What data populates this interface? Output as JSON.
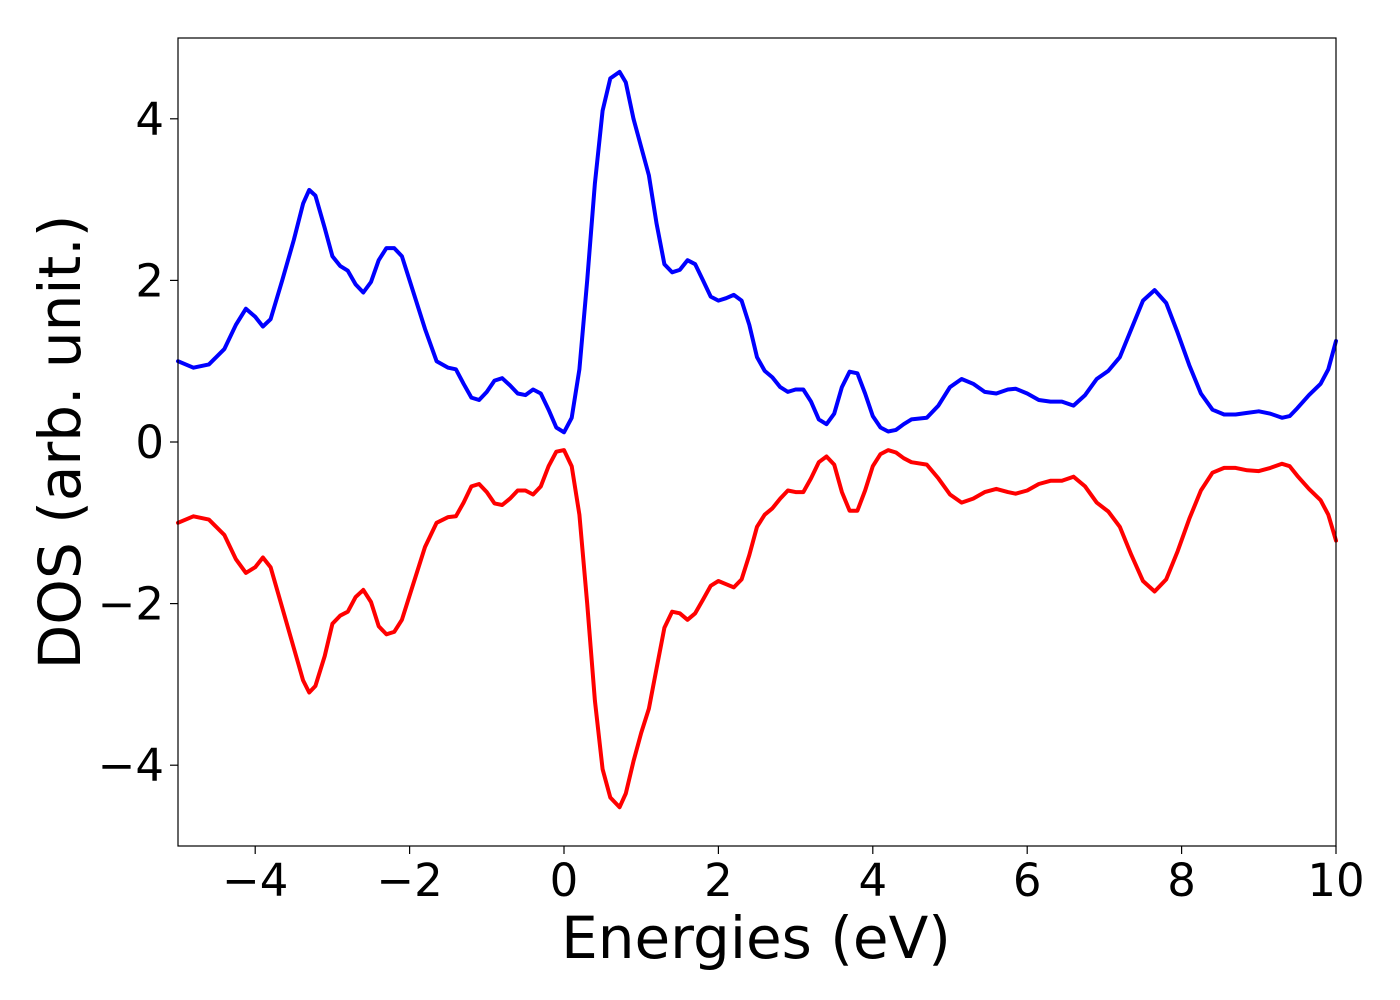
{
  "chart_data": {
    "type": "line",
    "title": "",
    "xlabel": "Energies (eV)",
    "ylabel": "DOS (arb. unit.)",
    "xlim": [
      -5,
      10
    ],
    "ylim": [
      -5,
      5
    ],
    "grid": false,
    "x_ticks": [
      -4,
      -2,
      0,
      2,
      4,
      6,
      8,
      10
    ],
    "x_tick_labels": [
      "−4",
      "−2",
      "0",
      "2",
      "4",
      "6",
      "8",
      "10"
    ],
    "y_ticks": [
      -4,
      -2,
      0,
      2,
      4
    ],
    "y_tick_labels": [
      "−4",
      "−2",
      "0",
      "2",
      "4"
    ],
    "series": [
      {
        "color": "#0000ff",
        "points": [
          [
            -5.0,
            1.0
          ],
          [
            -4.8,
            0.92
          ],
          [
            -4.6,
            0.96
          ],
          [
            -4.4,
            1.15
          ],
          [
            -4.25,
            1.45
          ],
          [
            -4.12,
            1.65
          ],
          [
            -4.0,
            1.55
          ],
          [
            -3.9,
            1.43
          ],
          [
            -3.8,
            1.52
          ],
          [
            -3.65,
            2.0
          ],
          [
            -3.5,
            2.5
          ],
          [
            -3.38,
            2.95
          ],
          [
            -3.3,
            3.12
          ],
          [
            -3.22,
            3.05
          ],
          [
            -3.1,
            2.65
          ],
          [
            -3.0,
            2.3
          ],
          [
            -2.9,
            2.18
          ],
          [
            -2.8,
            2.12
          ],
          [
            -2.7,
            1.95
          ],
          [
            -2.6,
            1.85
          ],
          [
            -2.5,
            1.98
          ],
          [
            -2.4,
            2.25
          ],
          [
            -2.3,
            2.4
          ],
          [
            -2.2,
            2.4
          ],
          [
            -2.1,
            2.3
          ],
          [
            -2.0,
            2.0
          ],
          [
            -1.8,
            1.4
          ],
          [
            -1.65,
            1.0
          ],
          [
            -1.5,
            0.92
          ],
          [
            -1.4,
            0.9
          ],
          [
            -1.3,
            0.72
          ],
          [
            -1.2,
            0.55
          ],
          [
            -1.1,
            0.52
          ],
          [
            -1.0,
            0.62
          ],
          [
            -0.9,
            0.76
          ],
          [
            -0.8,
            0.79
          ],
          [
            -0.7,
            0.7
          ],
          [
            -0.6,
            0.6
          ],
          [
            -0.5,
            0.58
          ],
          [
            -0.4,
            0.65
          ],
          [
            -0.3,
            0.6
          ],
          [
            -0.2,
            0.4
          ],
          [
            -0.1,
            0.18
          ],
          [
            0.0,
            0.12
          ],
          [
            0.1,
            0.3
          ],
          [
            0.2,
            0.9
          ],
          [
            0.3,
            2.0
          ],
          [
            0.4,
            3.2
          ],
          [
            0.5,
            4.1
          ],
          [
            0.6,
            4.5
          ],
          [
            0.72,
            4.58
          ],
          [
            0.8,
            4.45
          ],
          [
            0.9,
            4.0
          ],
          [
            1.0,
            3.65
          ],
          [
            1.1,
            3.3
          ],
          [
            1.2,
            2.7
          ],
          [
            1.3,
            2.2
          ],
          [
            1.4,
            2.1
          ],
          [
            1.5,
            2.13
          ],
          [
            1.6,
            2.25
          ],
          [
            1.7,
            2.2
          ],
          [
            1.8,
            2.0
          ],
          [
            1.9,
            1.8
          ],
          [
            2.0,
            1.75
          ],
          [
            2.1,
            1.78
          ],
          [
            2.2,
            1.82
          ],
          [
            2.3,
            1.75
          ],
          [
            2.4,
            1.45
          ],
          [
            2.5,
            1.05
          ],
          [
            2.6,
            0.88
          ],
          [
            2.7,
            0.8
          ],
          [
            2.8,
            0.68
          ],
          [
            2.9,
            0.62
          ],
          [
            3.0,
            0.65
          ],
          [
            3.1,
            0.65
          ],
          [
            3.2,
            0.5
          ],
          [
            3.3,
            0.28
          ],
          [
            3.4,
            0.22
          ],
          [
            3.5,
            0.35
          ],
          [
            3.6,
            0.68
          ],
          [
            3.7,
            0.87
          ],
          [
            3.8,
            0.85
          ],
          [
            3.9,
            0.6
          ],
          [
            4.0,
            0.32
          ],
          [
            4.1,
            0.18
          ],
          [
            4.2,
            0.13
          ],
          [
            4.3,
            0.15
          ],
          [
            4.4,
            0.22
          ],
          [
            4.5,
            0.28
          ],
          [
            4.7,
            0.3
          ],
          [
            4.85,
            0.45
          ],
          [
            5.0,
            0.68
          ],
          [
            5.15,
            0.78
          ],
          [
            5.3,
            0.72
          ],
          [
            5.45,
            0.62
          ],
          [
            5.6,
            0.6
          ],
          [
            5.75,
            0.65
          ],
          [
            5.85,
            0.66
          ],
          [
            6.0,
            0.6
          ],
          [
            6.15,
            0.52
          ],
          [
            6.3,
            0.5
          ],
          [
            6.45,
            0.5
          ],
          [
            6.6,
            0.45
          ],
          [
            6.75,
            0.58
          ],
          [
            6.9,
            0.78
          ],
          [
            7.05,
            0.88
          ],
          [
            7.2,
            1.05
          ],
          [
            7.35,
            1.4
          ],
          [
            7.5,
            1.75
          ],
          [
            7.65,
            1.88
          ],
          [
            7.8,
            1.72
          ],
          [
            7.95,
            1.35
          ],
          [
            8.1,
            0.95
          ],
          [
            8.25,
            0.6
          ],
          [
            8.4,
            0.4
          ],
          [
            8.55,
            0.34
          ],
          [
            8.7,
            0.34
          ],
          [
            8.85,
            0.36
          ],
          [
            9.0,
            0.38
          ],
          [
            9.15,
            0.35
          ],
          [
            9.3,
            0.3
          ],
          [
            9.4,
            0.32
          ],
          [
            9.5,
            0.42
          ],
          [
            9.65,
            0.58
          ],
          [
            9.8,
            0.72
          ],
          [
            9.9,
            0.9
          ],
          [
            10.0,
            1.25
          ]
        ]
      },
      {
        "color": "#ff0000",
        "points": [
          [
            -5.0,
            -1.0
          ],
          [
            -4.8,
            -0.92
          ],
          [
            -4.6,
            -0.96
          ],
          [
            -4.4,
            -1.15
          ],
          [
            -4.25,
            -1.45
          ],
          [
            -4.12,
            -1.62
          ],
          [
            -4.0,
            -1.55
          ],
          [
            -3.9,
            -1.43
          ],
          [
            -3.8,
            -1.55
          ],
          [
            -3.65,
            -2.05
          ],
          [
            -3.5,
            -2.55
          ],
          [
            -3.38,
            -2.95
          ],
          [
            -3.3,
            -3.1
          ],
          [
            -3.22,
            -3.02
          ],
          [
            -3.1,
            -2.65
          ],
          [
            -3.0,
            -2.25
          ],
          [
            -2.9,
            -2.15
          ],
          [
            -2.8,
            -2.1
          ],
          [
            -2.7,
            -1.92
          ],
          [
            -2.6,
            -1.83
          ],
          [
            -2.5,
            -1.98
          ],
          [
            -2.4,
            -2.28
          ],
          [
            -2.3,
            -2.38
          ],
          [
            -2.2,
            -2.35
          ],
          [
            -2.1,
            -2.2
          ],
          [
            -2.0,
            -1.9
          ],
          [
            -1.8,
            -1.3
          ],
          [
            -1.65,
            -1.0
          ],
          [
            -1.5,
            -0.93
          ],
          [
            -1.4,
            -0.92
          ],
          [
            -1.3,
            -0.75
          ],
          [
            -1.2,
            -0.55
          ],
          [
            -1.1,
            -0.52
          ],
          [
            -1.0,
            -0.62
          ],
          [
            -0.9,
            -0.76
          ],
          [
            -0.8,
            -0.78
          ],
          [
            -0.7,
            -0.7
          ],
          [
            -0.6,
            -0.6
          ],
          [
            -0.5,
            -0.6
          ],
          [
            -0.4,
            -0.65
          ],
          [
            -0.3,
            -0.55
          ],
          [
            -0.2,
            -0.3
          ],
          [
            -0.1,
            -0.12
          ],
          [
            0.0,
            -0.1
          ],
          [
            0.1,
            -0.3
          ],
          [
            0.2,
            -0.9
          ],
          [
            0.3,
            -2.0
          ],
          [
            0.4,
            -3.2
          ],
          [
            0.5,
            -4.05
          ],
          [
            0.6,
            -4.4
          ],
          [
            0.72,
            -4.52
          ],
          [
            0.8,
            -4.35
          ],
          [
            0.9,
            -3.95
          ],
          [
            1.0,
            -3.6
          ],
          [
            1.1,
            -3.3
          ],
          [
            1.2,
            -2.8
          ],
          [
            1.3,
            -2.3
          ],
          [
            1.4,
            -2.1
          ],
          [
            1.5,
            -2.12
          ],
          [
            1.6,
            -2.2
          ],
          [
            1.7,
            -2.12
          ],
          [
            1.8,
            -1.95
          ],
          [
            1.9,
            -1.78
          ],
          [
            2.0,
            -1.72
          ],
          [
            2.1,
            -1.76
          ],
          [
            2.2,
            -1.8
          ],
          [
            2.3,
            -1.7
          ],
          [
            2.4,
            -1.4
          ],
          [
            2.5,
            -1.05
          ],
          [
            2.6,
            -0.9
          ],
          [
            2.7,
            -0.82
          ],
          [
            2.8,
            -0.7
          ],
          [
            2.9,
            -0.6
          ],
          [
            3.0,
            -0.62
          ],
          [
            3.1,
            -0.62
          ],
          [
            3.2,
            -0.45
          ],
          [
            3.3,
            -0.25
          ],
          [
            3.4,
            -0.18
          ],
          [
            3.5,
            -0.28
          ],
          [
            3.6,
            -0.62
          ],
          [
            3.7,
            -0.85
          ],
          [
            3.8,
            -0.85
          ],
          [
            3.9,
            -0.6
          ],
          [
            4.0,
            -0.3
          ],
          [
            4.1,
            -0.15
          ],
          [
            4.2,
            -0.1
          ],
          [
            4.3,
            -0.13
          ],
          [
            4.4,
            -0.2
          ],
          [
            4.5,
            -0.25
          ],
          [
            4.7,
            -0.28
          ],
          [
            4.85,
            -0.45
          ],
          [
            5.0,
            -0.65
          ],
          [
            5.15,
            -0.75
          ],
          [
            5.3,
            -0.7
          ],
          [
            5.45,
            -0.62
          ],
          [
            5.6,
            -0.58
          ],
          [
            5.75,
            -0.62
          ],
          [
            5.85,
            -0.64
          ],
          [
            6.0,
            -0.6
          ],
          [
            6.15,
            -0.52
          ],
          [
            6.3,
            -0.48
          ],
          [
            6.45,
            -0.48
          ],
          [
            6.6,
            -0.43
          ],
          [
            6.75,
            -0.55
          ],
          [
            6.9,
            -0.75
          ],
          [
            7.05,
            -0.86
          ],
          [
            7.2,
            -1.05
          ],
          [
            7.35,
            -1.4
          ],
          [
            7.5,
            -1.72
          ],
          [
            7.65,
            -1.85
          ],
          [
            7.8,
            -1.7
          ],
          [
            7.95,
            -1.35
          ],
          [
            8.1,
            -0.95
          ],
          [
            8.25,
            -0.6
          ],
          [
            8.4,
            -0.38
          ],
          [
            8.55,
            -0.32
          ],
          [
            8.7,
            -0.32
          ],
          [
            8.85,
            -0.35
          ],
          [
            9.0,
            -0.36
          ],
          [
            9.15,
            -0.32
          ],
          [
            9.3,
            -0.27
          ],
          [
            9.4,
            -0.3
          ],
          [
            9.5,
            -0.42
          ],
          [
            9.65,
            -0.58
          ],
          [
            9.8,
            -0.72
          ],
          [
            9.9,
            -0.9
          ],
          [
            10.0,
            -1.22
          ]
        ]
      }
    ]
  }
}
